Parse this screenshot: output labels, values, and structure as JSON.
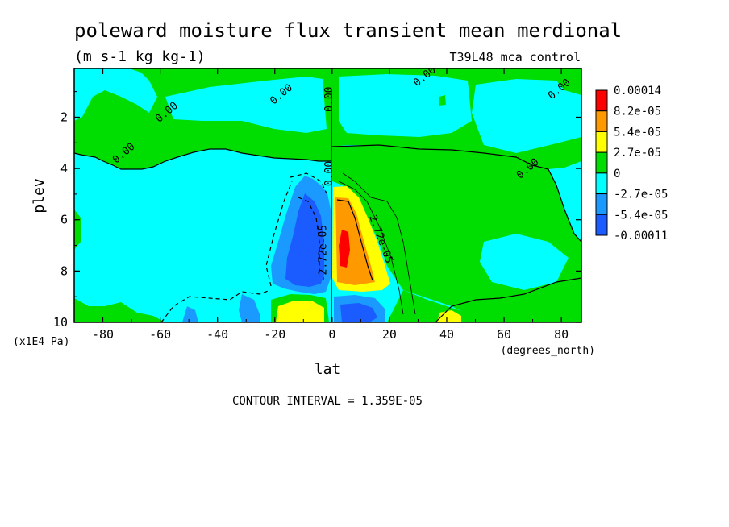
{
  "chart_data": {
    "type": "heatmap",
    "subtype": "filled-contour",
    "title": "poleward moisture flux transient mean merdional",
    "units": "(m s-1 kg kg-1)",
    "dataset": "T39L48_mca_control",
    "xlabel": "lat",
    "xunits": "(degrees_north)",
    "ylabel": "plev",
    "yunits": "(x1E4 Pa)",
    "xlim": [
      -90,
      87
    ],
    "ylim": [
      10,
      0.1
    ],
    "y_inverted": true,
    "xticks": [
      "-80",
      "-60",
      "-40",
      "-20",
      "0",
      "20",
      "40",
      "60",
      "80"
    ],
    "yticks": [
      "2",
      "4",
      "6",
      "8",
      "10"
    ],
    "contour_interval_label": "CONTOUR INTERVAL = 1.359E-05",
    "legend_position": "right",
    "colorbar": {
      "labels": [
        "0.00014",
        "8.2e-05",
        "5.4e-05",
        "2.7e-05",
        "0",
        "-2.7e-05",
        "-5.4e-05",
        "-0.00011"
      ],
      "colors": [
        "#ff0000",
        "#ff9900",
        "#ffff00",
        "#00dd00",
        "#00ffff",
        "#1a9aff",
        "#1a5cff"
      ]
    },
    "contour_labels": [
      {
        "text": "0.00",
        "lat": -17,
        "plev": 1.2
      },
      {
        "text": "0.00",
        "lat": -57,
        "plev": 1.9
      },
      {
        "text": "0.00",
        "lat": -72,
        "plev": 3.5
      },
      {
        "text": "0.00",
        "lat": 0,
        "plev": 1.3
      },
      {
        "text": "0.00",
        "lat": 0,
        "plev": 4.2
      },
      {
        "text": "0.00",
        "lat": 33,
        "plev": 0.5
      },
      {
        "text": "0.00",
        "lat": 80,
        "plev": 1.0
      },
      {
        "text": "0.00",
        "lat": 69,
        "plev": 4.1
      },
      {
        "text": "2.72e-05",
        "lat": 16,
        "plev": 6.8
      },
      {
        "text": "-2.72e-05",
        "lat": -2,
        "plev": 7.3
      }
    ],
    "regions": [
      {
        "name": "tropical-positive-core",
        "lat_range": [
          2,
          12
        ],
        "plev_range": [
          4.7,
          8.5
        ],
        "peak": 0.00014,
        "peak_lat": 6,
        "peak_plev": 7.0
      },
      {
        "name": "tropical-negative-core",
        "lat_range": [
          -14,
          0
        ],
        "plev_range": [
          4.6,
          8.7
        ],
        "min": -0.00011,
        "min_lat": -6,
        "min_plev": 7.5
      },
      {
        "name": "lower-positive-lobe",
        "lat_range": [
          -19,
          -2
        ],
        "plev_range": [
          9.0,
          10
        ],
        "value": 5.4e-05
      },
      {
        "name": "lower-negative-lobe",
        "lat_range": [
          3,
          18
        ],
        "plev_range": [
          9.0,
          10
        ],
        "value": -5.4e-05
      }
    ]
  }
}
